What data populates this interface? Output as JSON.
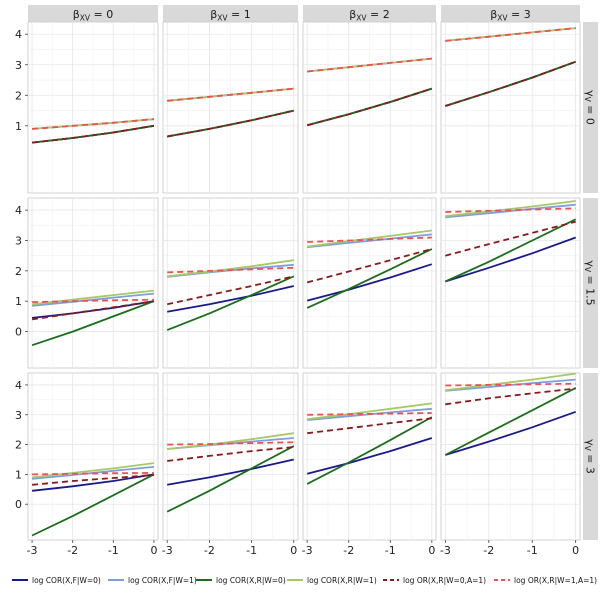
{
  "chart_data": {
    "type": "line",
    "facet_columns": [
      {
        "label": "βXV = 0",
        "sym": "β",
        "sub": "XV",
        "value": "= 0"
      },
      {
        "label": "βXV = 1",
        "sym": "β",
        "sub": "XV",
        "value": "= 1"
      },
      {
        "label": "βXV = 2",
        "sym": "β",
        "sub": "XV",
        "value": "= 2"
      },
      {
        "label": "βXV = 3",
        "sym": "β",
        "sub": "XV",
        "value": "= 3"
      }
    ],
    "facet_rows": [
      {
        "label": "γV = 0",
        "sym": "γ",
        "sub": "V",
        "value": "= 0"
      },
      {
        "label": "γV = 1.5",
        "sym": "γ",
        "sub": "V",
        "value": "= 1.5"
      },
      {
        "label": "γV = 3",
        "sym": "γ",
        "sub": "V",
        "value": "= 3"
      }
    ],
    "x_ticks": [
      -3,
      -2,
      -1,
      0
    ],
    "x_tick_labels": [
      "-3",
      "-2",
      "-1",
      "0"
    ],
    "xlim": [
      -3.1,
      0.1
    ],
    "ylim": [
      -1.2,
      4.4
    ],
    "y_tick_sets": [
      [
        1,
        2,
        3,
        4
      ],
      [
        0,
        1,
        2,
        3,
        4
      ],
      [
        0,
        1,
        2,
        3,
        4
      ]
    ],
    "legend_position": "bottom",
    "series_styles": [
      {
        "name": "log COR(X,F|W=0)",
        "color": "#1a1a8c",
        "dash": "solid"
      },
      {
        "name": "log COR(X,F|W=1)",
        "color": "#7b9fe0",
        "dash": "solid"
      },
      {
        "name": "log COR(X,R|W=0)",
        "color": "#1b6e1b",
        "dash": "solid"
      },
      {
        "name": "log COR(X,R|W=1)",
        "color": "#a6c866",
        "dash": "solid"
      },
      {
        "name": "log OR(X,R|W=0,A=1)",
        "color": "#8b1a1a",
        "dash": "dashed"
      },
      {
        "name": "log OR(X,R|W=1,A=1)",
        "color": "#f25050",
        "dash": "dashed"
      }
    ],
    "x": [
      -3,
      -2,
      -1,
      0
    ],
    "panels": [
      {
        "row": 0,
        "col": 0,
        "series": [
          {
            "s": 0,
            "values": [
              0.45,
              0.6,
              0.78,
              1.0
            ]
          },
          {
            "s": 1,
            "values": [
              0.9,
              1.0,
              1.1,
              1.22
            ]
          },
          {
            "s": 2,
            "values": [
              0.45,
              0.6,
              0.78,
              1.0
            ]
          },
          {
            "s": 3,
            "values": [
              0.9,
              1.0,
              1.1,
              1.22
            ]
          },
          {
            "s": 4,
            "values": [
              0.45,
              0.6,
              0.78,
              1.0
            ]
          },
          {
            "s": 5,
            "values": [
              0.9,
              1.0,
              1.1,
              1.22
            ]
          }
        ]
      },
      {
        "row": 0,
        "col": 1,
        "series": [
          {
            "s": 0,
            "values": [
              0.65,
              0.9,
              1.18,
              1.5
            ]
          },
          {
            "s": 1,
            "values": [
              1.82,
              1.95,
              2.08,
              2.22
            ]
          },
          {
            "s": 2,
            "values": [
              0.65,
              0.9,
              1.18,
              1.5
            ]
          },
          {
            "s": 3,
            "values": [
              1.82,
              1.95,
              2.08,
              2.22
            ]
          },
          {
            "s": 4,
            "values": [
              0.65,
              0.9,
              1.18,
              1.5
            ]
          },
          {
            "s": 5,
            "values": [
              1.82,
              1.95,
              2.08,
              2.22
            ]
          }
        ]
      },
      {
        "row": 0,
        "col": 2,
        "series": [
          {
            "s": 0,
            "values": [
              1.02,
              1.38,
              1.78,
              2.22
            ]
          },
          {
            "s": 1,
            "values": [
              2.78,
              2.92,
              3.06,
              3.2
            ]
          },
          {
            "s": 2,
            "values": [
              1.02,
              1.38,
              1.78,
              2.22
            ]
          },
          {
            "s": 3,
            "values": [
              2.78,
              2.92,
              3.06,
              3.2
            ]
          },
          {
            "s": 4,
            "values": [
              1.02,
              1.38,
              1.78,
              2.22
            ]
          },
          {
            "s": 5,
            "values": [
              2.78,
              2.92,
              3.06,
              3.2
            ]
          }
        ]
      },
      {
        "row": 0,
        "col": 3,
        "series": [
          {
            "s": 0,
            "values": [
              1.65,
              2.1,
              2.58,
              3.1
            ]
          },
          {
            "s": 1,
            "values": [
              3.78,
              3.92,
              4.06,
              4.2
            ]
          },
          {
            "s": 2,
            "values": [
              1.65,
              2.1,
              2.58,
              3.1
            ]
          },
          {
            "s": 3,
            "values": [
              3.78,
              3.92,
              4.06,
              4.2
            ]
          },
          {
            "s": 4,
            "values": [
              1.65,
              2.1,
              2.58,
              3.1
            ]
          },
          {
            "s": 5,
            "values": [
              3.78,
              3.92,
              4.06,
              4.2
            ]
          }
        ]
      },
      {
        "row": 1,
        "col": 0,
        "series": [
          {
            "s": 0,
            "values": [
              0.45,
              0.6,
              0.78,
              1.0
            ]
          },
          {
            "s": 1,
            "values": [
              0.85,
              0.98,
              1.12,
              1.25
            ]
          },
          {
            "s": 2,
            "values": [
              -0.45,
              0.0,
              0.5,
              1.0
            ]
          },
          {
            "s": 3,
            "values": [
              0.9,
              1.05,
              1.2,
              1.35
            ]
          },
          {
            "s": 4,
            "values": [
              0.4,
              0.6,
              0.8,
              1.0
            ]
          },
          {
            "s": 5,
            "values": [
              0.97,
              1.0,
              1.03,
              1.05
            ]
          }
        ]
      },
      {
        "row": 1,
        "col": 1,
        "series": [
          {
            "s": 0,
            "values": [
              0.65,
              0.9,
              1.18,
              1.5
            ]
          },
          {
            "s": 1,
            "values": [
              1.8,
              1.95,
              2.08,
              2.2
            ]
          },
          {
            "s": 2,
            "values": [
              0.05,
              0.6,
              1.2,
              1.82
            ]
          },
          {
            "s": 3,
            "values": [
              1.82,
              1.98,
              2.15,
              2.35
            ]
          },
          {
            "s": 4,
            "values": [
              0.9,
              1.2,
              1.5,
              1.82
            ]
          },
          {
            "s": 5,
            "values": [
              1.95,
              2.0,
              2.05,
              2.1
            ]
          }
        ]
      },
      {
        "row": 1,
        "col": 2,
        "series": [
          {
            "s": 0,
            "values": [
              1.02,
              1.38,
              1.78,
              2.22
            ]
          },
          {
            "s": 1,
            "values": [
              2.78,
              2.92,
              3.06,
              3.2
            ]
          },
          {
            "s": 2,
            "values": [
              0.78,
              1.4,
              2.05,
              2.72
            ]
          },
          {
            "s": 3,
            "values": [
              2.8,
              2.98,
              3.15,
              3.33
            ]
          },
          {
            "s": 4,
            "values": [
              1.62,
              1.98,
              2.35,
              2.72
            ]
          },
          {
            "s": 5,
            "values": [
              2.95,
              3.0,
              3.05,
              3.1
            ]
          }
        ]
      },
      {
        "row": 1,
        "col": 3,
        "series": [
          {
            "s": 0,
            "values": [
              1.65,
              2.1,
              2.58,
              3.1
            ]
          },
          {
            "s": 1,
            "values": [
              3.76,
              3.9,
              4.04,
              4.18
            ]
          },
          {
            "s": 2,
            "values": [
              1.65,
              2.3,
              3.0,
              3.7
            ]
          },
          {
            "s": 3,
            "values": [
              3.8,
              3.96,
              4.12,
              4.3
            ]
          },
          {
            "s": 4,
            "values": [
              2.5,
              2.88,
              3.25,
              3.62
            ]
          },
          {
            "s": 5,
            "values": [
              3.94,
              3.98,
              4.02,
              4.06
            ]
          }
        ]
      },
      {
        "row": 2,
        "col": 0,
        "series": [
          {
            "s": 0,
            "values": [
              0.45,
              0.6,
              0.78,
              1.0
            ]
          },
          {
            "s": 1,
            "values": [
              0.85,
              0.98,
              1.12,
              1.25
            ]
          },
          {
            "s": 2,
            "values": [
              -1.05,
              -0.4,
              0.3,
              1.0
            ]
          },
          {
            "s": 3,
            "values": [
              0.9,
              1.05,
              1.2,
              1.38
            ]
          },
          {
            "s": 4,
            "values": [
              0.65,
              0.78,
              0.88,
              0.98
            ]
          },
          {
            "s": 5,
            "values": [
              1.0,
              1.02,
              1.04,
              1.05
            ]
          }
        ]
      },
      {
        "row": 2,
        "col": 1,
        "series": [
          {
            "s": 0,
            "values": [
              0.65,
              0.9,
              1.18,
              1.5
            ]
          },
          {
            "s": 1,
            "values": [
              1.85,
              1.98,
              2.1,
              2.22
            ]
          },
          {
            "s": 2,
            "values": [
              -0.25,
              0.45,
              1.2,
              1.95
            ]
          },
          {
            "s": 3,
            "values": [
              1.85,
              2.0,
              2.18,
              2.38
            ]
          },
          {
            "s": 4,
            "values": [
              1.45,
              1.62,
              1.78,
              1.92
            ]
          },
          {
            "s": 5,
            "values": [
              2.0,
              2.02,
              2.05,
              2.08
            ]
          }
        ]
      },
      {
        "row": 2,
        "col": 2,
        "series": [
          {
            "s": 0,
            "values": [
              1.02,
              1.38,
              1.78,
              2.22
            ]
          },
          {
            "s": 1,
            "values": [
              2.82,
              2.95,
              3.08,
              3.2
            ]
          },
          {
            "s": 2,
            "values": [
              0.68,
              1.4,
              2.15,
              2.92
            ]
          },
          {
            "s": 3,
            "values": [
              2.85,
              3.02,
              3.2,
              3.38
            ]
          },
          {
            "s": 4,
            "values": [
              2.38,
              2.55,
              2.72,
              2.88
            ]
          },
          {
            "s": 5,
            "values": [
              3.0,
              3.02,
              3.04,
              3.06
            ]
          }
        ]
      },
      {
        "row": 2,
        "col": 3,
        "series": [
          {
            "s": 0,
            "values": [
              1.65,
              2.1,
              2.58,
              3.1
            ]
          },
          {
            "s": 1,
            "values": [
              3.8,
              3.93,
              4.06,
              4.18
            ]
          },
          {
            "s": 2,
            "values": [
              1.65,
              2.4,
              3.15,
              3.9
            ]
          },
          {
            "s": 3,
            "values": [
              3.82,
              4.0,
              4.18,
              4.38
            ]
          },
          {
            "s": 4,
            "values": [
              3.35,
              3.55,
              3.72,
              3.88
            ]
          },
          {
            "s": 5,
            "values": [
              3.98,
              4.0,
              4.02,
              4.04
            ]
          }
        ]
      }
    ]
  }
}
